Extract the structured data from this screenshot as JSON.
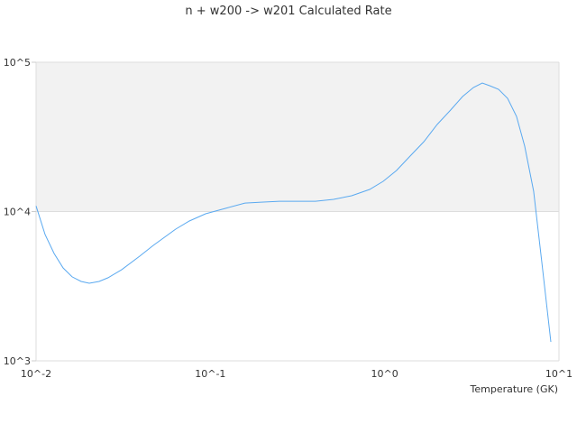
{
  "chart_data": {
    "type": "line",
    "title": "n + w200 -> w201 Calculated Rate",
    "xlabel": "Temperature (GK)",
    "ylabel": "",
    "x_scale": "log",
    "y_scale": "log",
    "xlim": [
      0.01,
      10
    ],
    "ylim": [
      1000,
      100000
    ],
    "x_ticks": [
      0.01,
      0.1,
      1,
      10
    ],
    "x_tick_labels": [
      "10^-2",
      "10^-1",
      "10^0",
      "10^1"
    ],
    "y_ticks": [
      1000,
      10000,
      100000
    ],
    "y_tick_labels": [
      "10^3",
      "10^4",
      "10^5"
    ],
    "grid": "alternating horizontal bands",
    "line_color": "#5aa9f0",
    "band_color": "#f2f2f2",
    "series": [
      {
        "x": [
          0.01,
          0.01127,
          0.01269,
          0.01429,
          0.0161,
          0.01815,
          0.0202,
          0.023,
          0.0259,
          0.031,
          0.0393,
          0.047,
          0.0633,
          0.0757,
          0.0938,
          0.122,
          0.158,
          0.196,
          0.249,
          0.401,
          0.509,
          0.646,
          0.82,
          0.98,
          1.17,
          1.4,
          1.68,
          2.0,
          2.39,
          2.8,
          3.23,
          3.63,
          4.0,
          4.5,
          5.07,
          5.71,
          6.36,
          7.16,
          7.97,
          8.98
        ],
        "y": [
          10900,
          7010,
          5240,
          4190,
          3650,
          3400,
          3310,
          3400,
          3600,
          4080,
          5020,
          5930,
          7620,
          8640,
          9660,
          10500,
          11400,
          11560,
          11720,
          11720,
          12070,
          12760,
          14070,
          15930,
          18830,
          23530,
          29400,
          38300,
          47860,
          58900,
          67700,
          72600,
          69600,
          65900,
          57300,
          43400,
          27400,
          13680,
          4620,
          1340
        ]
      }
    ]
  }
}
